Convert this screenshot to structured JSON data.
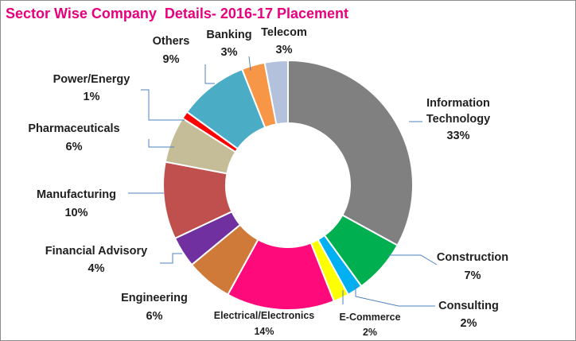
{
  "chart_data": {
    "type": "pie",
    "title": "Sector Wise Company  Details- 2016-17 Placement",
    "donut": true,
    "slices": [
      {
        "name": "Information Technology",
        "value": 33,
        "label": "33%",
        "color": "#808080"
      },
      {
        "name": "Construction",
        "value": 7,
        "label": "7%",
        "color": "#00b050"
      },
      {
        "name": "Consulting",
        "value": 2,
        "label": "2%",
        "color": "#00b0f0"
      },
      {
        "name": "E-Commerce",
        "value": 2,
        "label": "2%",
        "color": "#ffff00"
      },
      {
        "name": "Electrical/Electronics",
        "value": 14,
        "label": "14%",
        "color": "#ff0a7a"
      },
      {
        "name": "Engineering",
        "value": 6,
        "label": "6%",
        "color": "#d07a3a"
      },
      {
        "name": "Financial Advisory",
        "value": 4,
        "label": "4%",
        "color": "#7030a0"
      },
      {
        "name": "Manufacturing",
        "value": 10,
        "label": "10%",
        "color": "#c0504d"
      },
      {
        "name": "Pharmaceuticals",
        "value": 6,
        "label": "6%",
        "color": "#c4bd97"
      },
      {
        "name": "Power/Energy",
        "value": 1,
        "label": "1%",
        "color": "#ff0000"
      },
      {
        "name": "Others",
        "value": 9,
        "label": "9%",
        "color": "#4bacc6"
      },
      {
        "name": "Banking",
        "value": 3,
        "label": "3%",
        "color": "#f79646"
      },
      {
        "name": "Telecom",
        "value": 3,
        "label": "3%",
        "color": "#b3c1dd"
      }
    ]
  }
}
